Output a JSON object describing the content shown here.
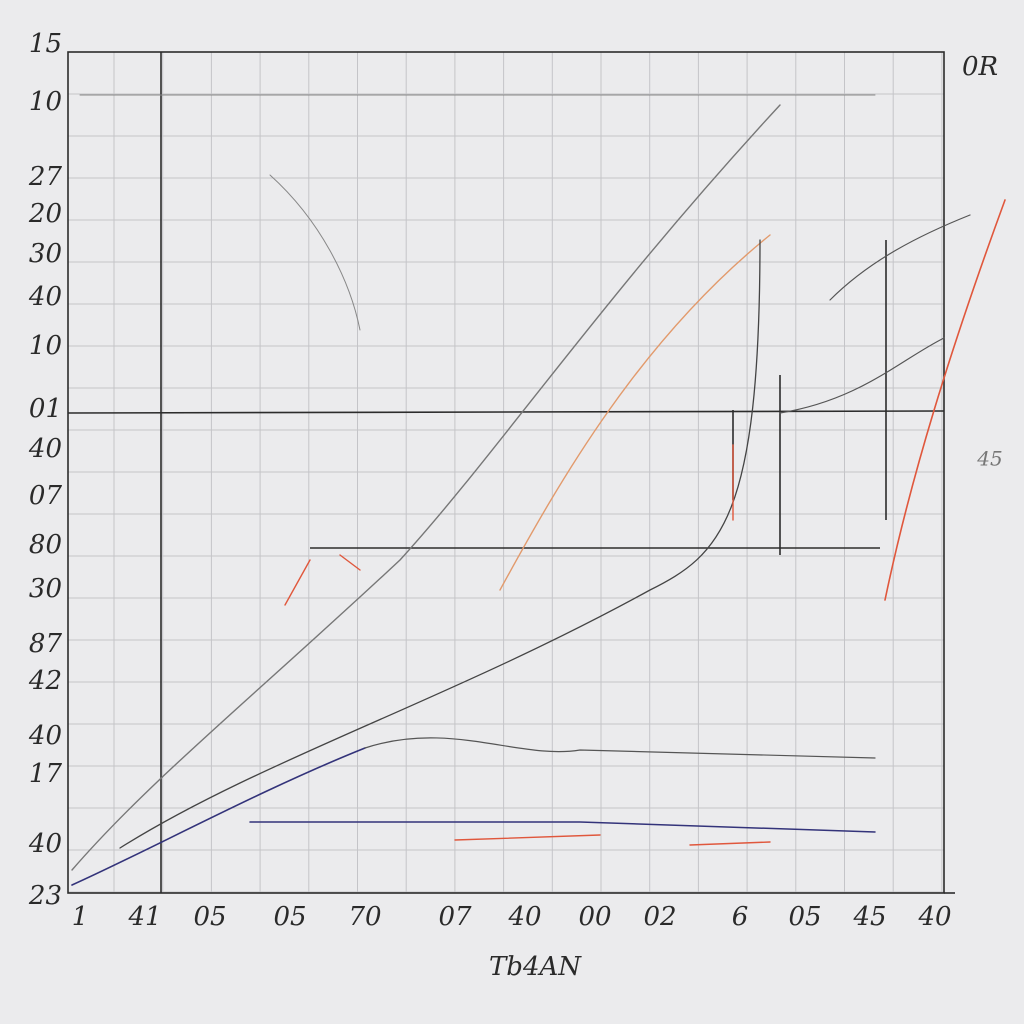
{
  "title": "0R",
  "x_axis_label": "Tb4AN",
  "y_labels": [
    "15",
    "10",
    "27",
    "20",
    "30",
    "40",
    "10",
    "01",
    "40",
    "07",
    "80",
    "30",
    "87",
    "42",
    "40",
    "17",
    "40",
    "23"
  ],
  "x_labels": [
    "1",
    "41",
    "05",
    "05",
    "70",
    "07",
    "40",
    "00",
    "02",
    "6",
    "05",
    "45",
    "40"
  ],
  "side_label": "45"
}
